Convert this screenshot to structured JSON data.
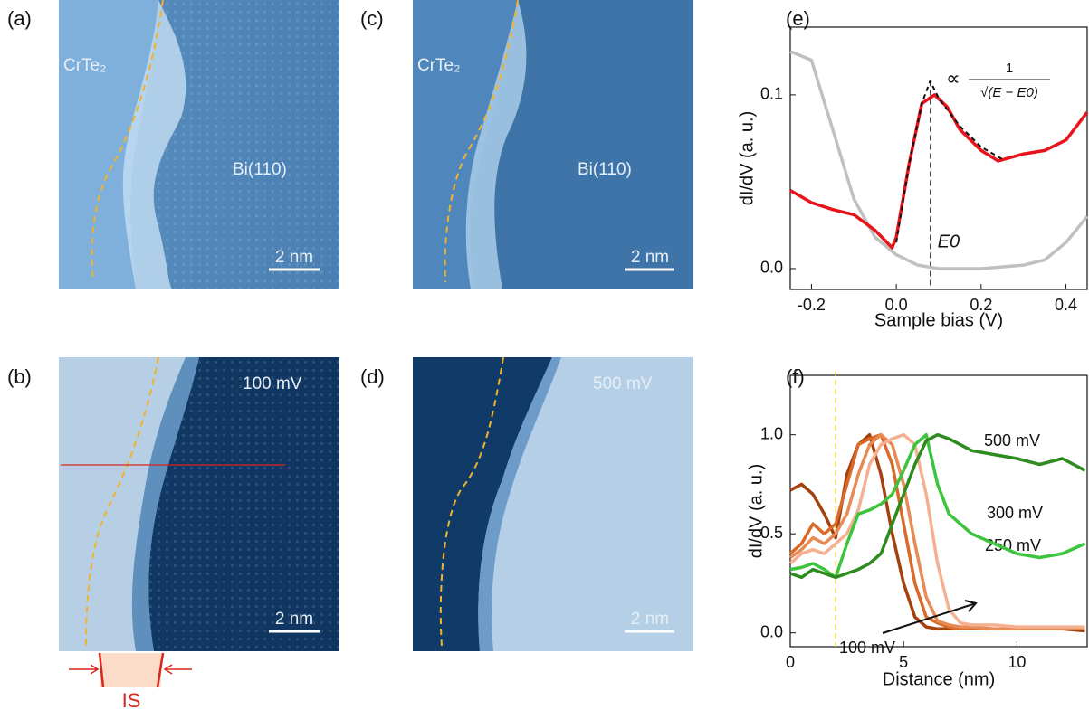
{
  "panels": {
    "a": {
      "label": "(a)",
      "texts": [
        "CrTe₂",
        "Bi(110)",
        "2 nm"
      ]
    },
    "b": {
      "label": "(b)",
      "texts": [
        "100 mV",
        "2 nm"
      ],
      "region": "IS"
    },
    "c": {
      "label": "(c)",
      "texts": [
        "CrTe₂",
        "Bi(110)",
        "2 nm"
      ]
    },
    "d": {
      "label": "(d)",
      "texts": [
        "500 mV",
        "2 nm"
      ]
    }
  },
  "chart_data": [
    {
      "type": "line",
      "label": "(e)",
      "x_label": "Sample bias (V)",
      "y_label": "dI/dV (a. u.)",
      "xlim": [
        -0.25,
        0.45
      ],
      "ylim": [
        -0.012,
        0.139
      ],
      "xticks": [
        -0.2,
        {
          "value": 0,
          "label": "0.0"
        },
        0.2,
        0.4
      ],
      "yticks": [
        {
          "value": 0,
          "label": "0.0"
        },
        0.1
      ],
      "marker_x": 0.08,
      "marker_label": "E0",
      "annotation": {
        "prop": "∝",
        "numerator": "1",
        "denominator": "√(E − E0)"
      },
      "series": [
        {
          "color": "#c0c0c0",
          "x": [
            -0.25,
            -0.2,
            -0.15,
            -0.1,
            -0.05,
            0.0,
            0.05,
            0.1,
            0.2,
            0.3,
            0.35,
            0.4,
            0.45
          ],
          "values": [
            0.125,
            0.12,
            0.08,
            0.04,
            0.018,
            0.008,
            0.002,
            0.0,
            0.0,
            0.002,
            0.005,
            0.015,
            0.03
          ]
        },
        {
          "color": "#e8141c",
          "x": [
            -0.25,
            -0.2,
            -0.15,
            -0.1,
            -0.05,
            -0.01,
            0.0,
            0.03,
            0.06,
            0.09,
            0.12,
            0.15,
            0.2,
            0.24,
            0.3,
            0.35,
            0.4,
            0.45
          ],
          "values": [
            0.045,
            0.038,
            0.034,
            0.031,
            0.022,
            0.012,
            0.018,
            0.06,
            0.095,
            0.1,
            0.093,
            0.08,
            0.068,
            0.062,
            0.066,
            0.068,
            0.074,
            0.09
          ]
        },
        {
          "color": "#111111",
          "dash": true,
          "x": [
            0.0,
            0.03,
            0.06,
            0.08,
            0.1,
            0.15,
            0.2,
            0.25
          ],
          "values": [
            0.015,
            0.06,
            0.095,
            0.108,
            0.098,
            0.082,
            0.07,
            0.063
          ]
        }
      ]
    },
    {
      "type": "line",
      "label": "(f)",
      "x_label": "Distance (nm)",
      "y_label": "dI/dV (a. u.)",
      "xlim": [
        0,
        13.1
      ],
      "ylim": [
        -0.07,
        1.3
      ],
      "xticks": [
        0,
        5,
        10
      ],
      "yticks": [
        {
          "value": 0,
          "label": "0.0"
        },
        0.5,
        {
          "value": 1,
          "label": "1.0"
        }
      ],
      "marker_x": 2,
      "x": [
        0,
        0.5,
        1,
        1.5,
        2,
        2.5,
        3,
        3.5,
        4,
        4.5,
        5,
        5.5,
        6,
        6.5,
        7,
        7.5,
        8,
        9,
        10,
        11,
        12,
        13
      ],
      "series": [
        {
          "name": "100 mV",
          "color": "#a3420e",
          "values": [
            0.72,
            0.75,
            0.7,
            0.6,
            0.48,
            0.8,
            0.95,
            1.0,
            0.8,
            0.5,
            0.25,
            0.08,
            0.03,
            0.02,
            0.02,
            0.02,
            0.02,
            0.02,
            0.02,
            0.02,
            0.02,
            0.01
          ]
        },
        {
          "color": "#d96a2a",
          "values": [
            0.4,
            0.45,
            0.55,
            0.5,
            0.55,
            0.75,
            0.95,
            0.98,
            1.0,
            0.85,
            0.55,
            0.25,
            0.08,
            0.05,
            0.03,
            0.02,
            0.02,
            0.02,
            0.02,
            0.02,
            0.02,
            0.02
          ]
        },
        {
          "color": "#e88a55",
          "values": [
            0.38,
            0.42,
            0.48,
            0.45,
            0.5,
            0.6,
            0.8,
            0.95,
            1.0,
            0.95,
            0.75,
            0.45,
            0.18,
            0.06,
            0.04,
            0.03,
            0.03,
            0.02,
            0.02,
            0.02,
            0.02,
            0.02
          ]
        },
        {
          "name": "250 mV",
          "color": "#f4b090",
          "values": [
            0.35,
            0.4,
            0.42,
            0.4,
            0.45,
            0.5,
            0.62,
            0.85,
            0.95,
            0.98,
            1.0,
            0.95,
            0.7,
            0.35,
            0.12,
            0.05,
            0.04,
            0.04,
            0.03,
            0.03,
            0.03,
            0.03
          ]
        },
        {
          "name": "300 mV",
          "color": "#3cc43c",
          "values": [
            0.32,
            0.33,
            0.35,
            0.32,
            0.28,
            0.45,
            0.6,
            0.62,
            0.65,
            0.7,
            0.82,
            0.95,
            1.0,
            0.75,
            0.6,
            0.55,
            0.5,
            0.45,
            0.4,
            0.38,
            0.4,
            0.45
          ]
        },
        {
          "name": "500 mV",
          "color": "#2e8b1e",
          "values": [
            0.3,
            0.28,
            0.32,
            0.3,
            0.28,
            0.3,
            0.32,
            0.35,
            0.4,
            0.55,
            0.7,
            0.85,
            0.97,
            1.0,
            0.98,
            0.95,
            0.92,
            0.9,
            0.88,
            0.85,
            0.88,
            0.82
          ]
        }
      ]
    }
  ]
}
